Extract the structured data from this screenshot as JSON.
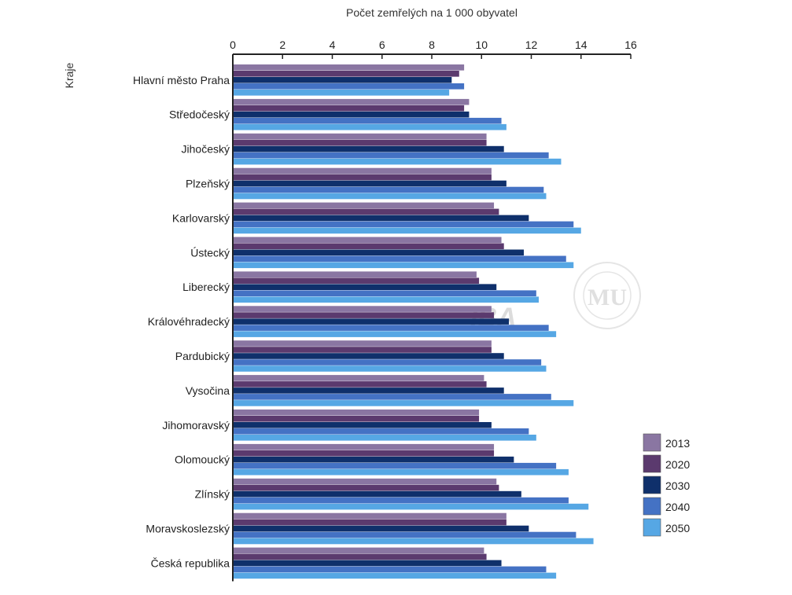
{
  "chart_data": {
    "type": "bar",
    "orientation": "horizontal",
    "title": "",
    "xlabel": "Počet zemřelých na 1 000 obyvatel",
    "ylabel": "Kraje",
    "xlim": [
      0,
      16
    ],
    "xticks": [
      "0",
      "2",
      "4",
      "6",
      "8",
      "10",
      "12",
      "14",
      "16"
    ],
    "grid": false,
    "legend_position": "right-bottom",
    "categories": [
      "Hlavní město Praha",
      "Středočeský",
      "Jihočeský",
      "Plzeňský",
      "Karlovarský",
      "Ústecký",
      "Liberecký",
      "Královéhradecký",
      "Pardubický",
      "Vysočina",
      "Jihomoravský",
      "Olomoucký",
      "Zlínský",
      "Moravskoslezský",
      "Česká republika"
    ],
    "series": [
      {
        "name": "2013",
        "color": "#8a76a2",
        "values": [
          9.3,
          9.5,
          10.2,
          10.4,
          10.5,
          10.8,
          9.8,
          10.4,
          10.4,
          10.1,
          9.9,
          10.5,
          10.6,
          11.0,
          10.1
        ]
      },
      {
        "name": "2020",
        "color": "#5b3a6e",
        "values": [
          9.1,
          9.3,
          10.2,
          10.4,
          10.7,
          10.9,
          9.9,
          10.5,
          10.4,
          10.2,
          9.9,
          10.5,
          10.7,
          11.0,
          10.2
        ]
      },
      {
        "name": "2030",
        "color": "#0f306b",
        "values": [
          8.8,
          9.5,
          10.9,
          11.0,
          11.9,
          11.7,
          10.6,
          11.1,
          10.9,
          10.9,
          10.4,
          11.3,
          11.6,
          11.9,
          10.8
        ]
      },
      {
        "name": "2040",
        "color": "#4472c4",
        "values": [
          9.3,
          10.8,
          12.7,
          12.5,
          13.7,
          13.4,
          12.2,
          12.7,
          12.4,
          12.8,
          11.9,
          13.0,
          13.5,
          13.8,
          12.6
        ]
      },
      {
        "name": "2050",
        "color": "#56a7e4",
        "values": [
          8.7,
          11.0,
          13.2,
          12.6,
          14.0,
          13.7,
          12.3,
          13.0,
          12.6,
          13.7,
          12.2,
          13.5,
          14.3,
          14.5,
          13.0
        ]
      }
    ]
  },
  "watermark": {
    "text": "IBA",
    "seal_letter": "MU",
    "seal_text": "UNIVERSITAS MASARYKIANA BRUNENSIS"
  }
}
